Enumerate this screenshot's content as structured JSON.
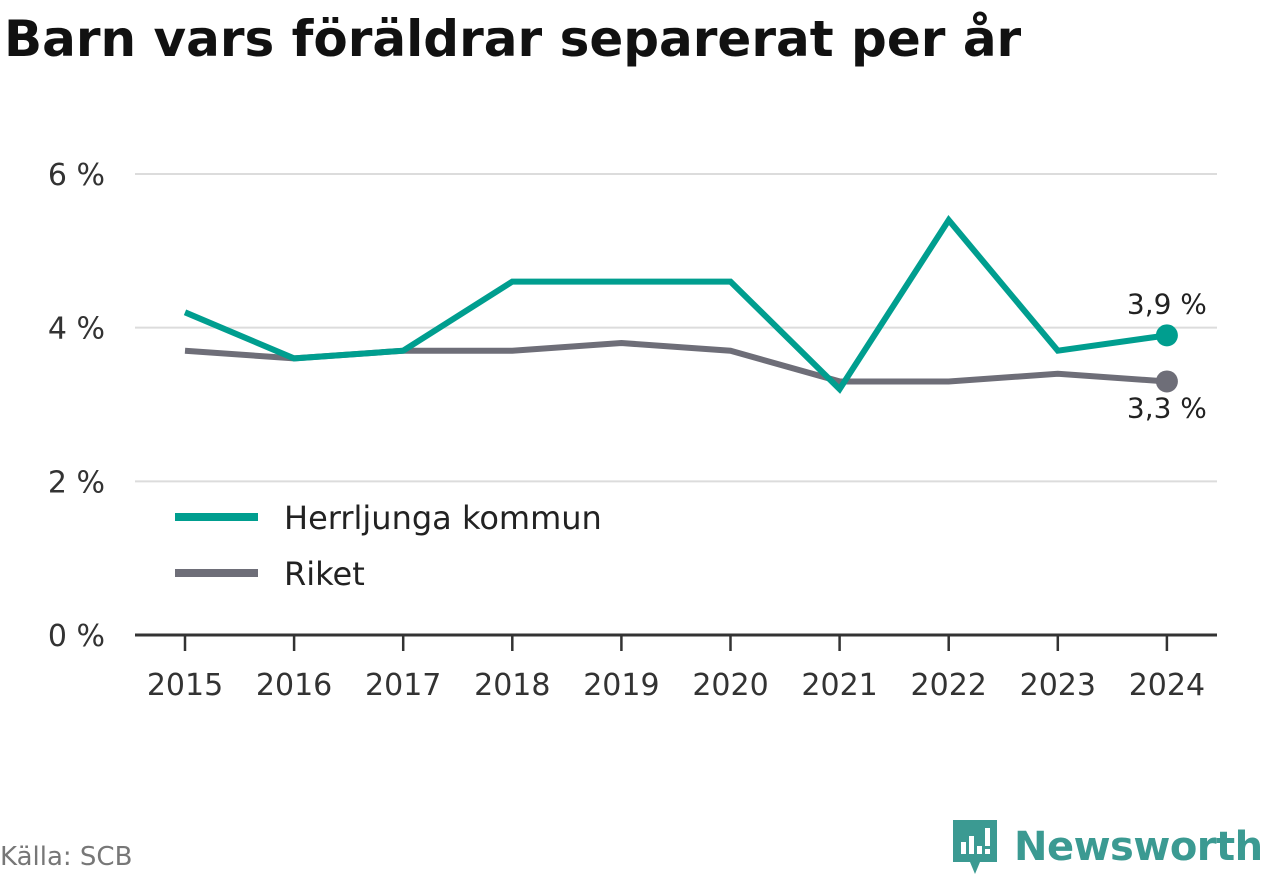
{
  "title": "Barn vars föräldrar separerat per år",
  "source": "Källa: SCB",
  "brand": {
    "name": "Newsworthy",
    "icon": "newsworthy-logo-icon",
    "color": "#3b9a92"
  },
  "chart_data": {
    "type": "line",
    "title": "Barn vars föräldrar separerat per år",
    "x": [
      "2015",
      "2016",
      "2017",
      "2018",
      "2019",
      "2020",
      "2021",
      "2022",
      "2023",
      "2024"
    ],
    "ylim": [
      0,
      6
    ],
    "yticks": [
      0,
      2,
      4,
      6
    ],
    "ytick_labels": [
      "0 %",
      "2 %",
      "4 %",
      "6 %"
    ],
    "grid": true,
    "legend_position": "bottom-left",
    "series": [
      {
        "name": "Herrljunga kommun",
        "color": "#009e8f",
        "values": [
          4.2,
          3.6,
          3.7,
          4.6,
          4.6,
          4.6,
          3.2,
          5.4,
          3.7,
          3.9
        ],
        "end_label": "3,9 %"
      },
      {
        "name": "Riket",
        "color": "#6e6e78",
        "values": [
          3.7,
          3.6,
          3.7,
          3.7,
          3.8,
          3.7,
          3.3,
          3.3,
          3.4,
          3.3
        ],
        "end_label": "3,3 %"
      }
    ]
  }
}
